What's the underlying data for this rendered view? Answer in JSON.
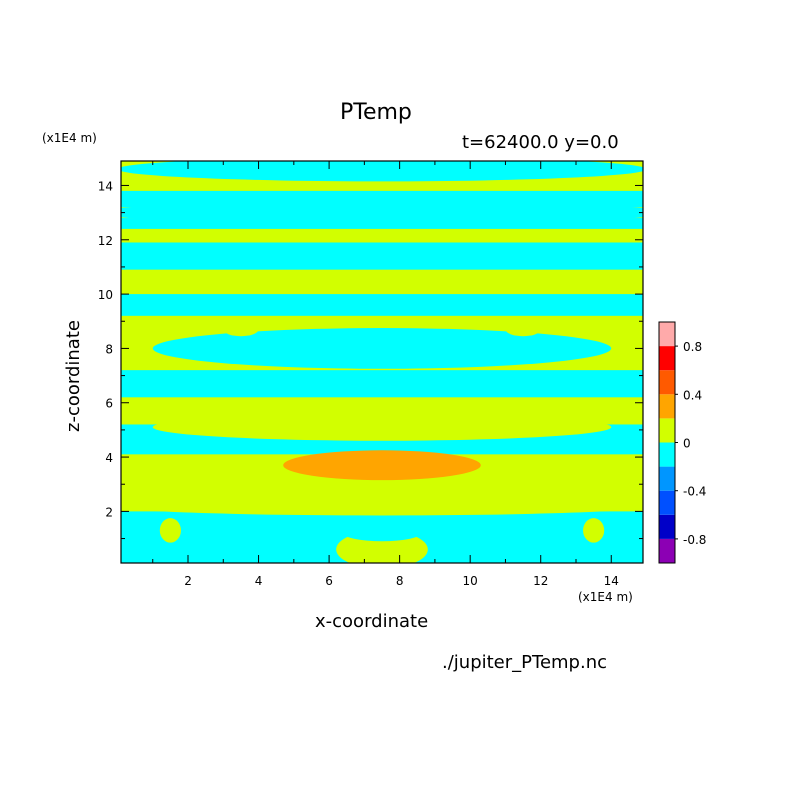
{
  "chart_data": {
    "type": "heatmap",
    "title": "PTemp",
    "subtitle": "t=62400.0 y=0.0",
    "xlabel": "x-coordinate",
    "ylabel": "z-coordinate",
    "x_unit": "(x1E4 m)",
    "y_unit": "(x1E4 m)",
    "source_file": "./jupiter_PTemp.nc",
    "xlim": [
      0.1,
      14.9
    ],
    "ylim": [
      0.1,
      14.9
    ],
    "x_ticks": [
      2,
      4,
      6,
      8,
      10,
      12,
      14
    ],
    "y_ticks": [
      2,
      4,
      6,
      8,
      10,
      12,
      14
    ],
    "colorbar": {
      "range": [
        -1.0,
        1.0
      ],
      "bin_edges": [
        -1.0,
        -0.8,
        -0.6,
        -0.4,
        -0.2,
        0.0,
        0.2,
        0.4,
        0.6,
        0.8,
        1.0
      ],
      "colors": [
        "#8c00b4",
        "#0000c8",
        "#0050ff",
        "#0096ff",
        "#00ffff",
        "#d2ff00",
        "#ffa500",
        "#ff5a00",
        "#ff0000",
        "#ffaaaa"
      ],
      "tick_values": [
        -0.8,
        -0.4,
        0,
        0.4,
        0.8
      ],
      "tick_labels": [
        "-0.8",
        "-0.4",
        "0",
        "0.4",
        "0.8"
      ]
    },
    "field_colors": {
      "positive": "#d2ff00",
      "negative": "#00ffff",
      "warm": "#ffa500"
    },
    "bands_negative_z": [
      [
        0.1,
        2.0
      ],
      [
        4.1,
        5.2
      ],
      [
        6.2,
        7.2
      ],
      [
        9.2,
        10.0
      ],
      [
        10.9,
        11.9
      ],
      [
        12.4,
        12.8
      ],
      [
        13.2,
        13.8
      ]
    ],
    "blobs": [
      {
        "kind": "negative",
        "cx": 7.5,
        "cz": 8.0,
        "rx": 6.5,
        "rz": 0.75
      },
      {
        "kind": "negative",
        "cx": 7.5,
        "cz": 13.0,
        "rx": 8.0,
        "rz": 0.45
      },
      {
        "kind": "negative",
        "cx": 7.5,
        "cz": 14.6,
        "rx": 7.5,
        "rz": 0.45
      },
      {
        "kind": "positive",
        "cx": 7.5,
        "cz": 5.1,
        "rx": 6.5,
        "rz": 0.5
      },
      {
        "kind": "positive",
        "cx": 7.5,
        "cz": 2.2,
        "rx": 7.6,
        "rz": 0.35
      },
      {
        "kind": "positive",
        "cx": 7.5,
        "cz": 0.6,
        "rx": 1.3,
        "rz": 0.7
      },
      {
        "kind": "positive",
        "cx": 1.5,
        "cz": 1.3,
        "rx": 0.3,
        "rz": 0.45
      },
      {
        "kind": "positive",
        "cx": 13.5,
        "cz": 1.3,
        "rx": 0.3,
        "rz": 0.45
      },
      {
        "kind": "positive",
        "cx": 3.5,
        "cz": 8.7,
        "rx": 0.5,
        "rz": 0.25
      },
      {
        "kind": "positive",
        "cx": 11.5,
        "cz": 8.7,
        "rx": 0.5,
        "rz": 0.25
      },
      {
        "kind": "negative",
        "cx": 7.5,
        "cz": 1.2,
        "rx": 1.1,
        "rz": 0.3
      },
      {
        "kind": "warm",
        "cx": 7.5,
        "cz": 3.7,
        "rx": 2.8,
        "rz": 0.55
      }
    ]
  }
}
